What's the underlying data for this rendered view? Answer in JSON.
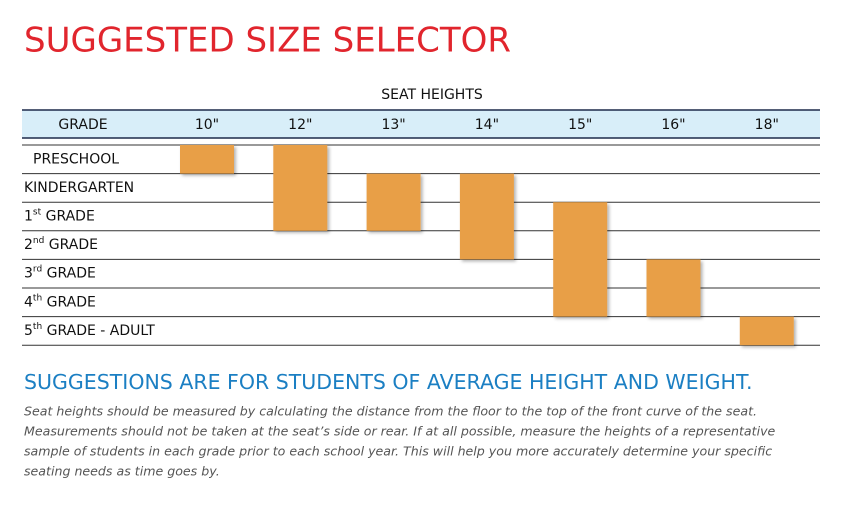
{
  "header": {
    "title": "SUGGESTED SIZE SELECTOR"
  },
  "table": {
    "caption": "SEAT HEIGHTS",
    "grade_header": "GRADE",
    "sizes": [
      {
        "label": "10\"",
        "grades": [
          0
        ]
      },
      {
        "label": "12\"",
        "grades": [
          0,
          1,
          2
        ]
      },
      {
        "label": "13\"",
        "grades": [
          1,
          2
        ]
      },
      {
        "label": "14\"",
        "grades": [
          1,
          2,
          3
        ]
      },
      {
        "label": "15\"",
        "grades": [
          2,
          3,
          4,
          5
        ]
      },
      {
        "label": "16\"",
        "grades": [
          4,
          5
        ]
      },
      {
        "label": "18\"",
        "grades": [
          6
        ]
      }
    ],
    "grades": [
      {
        "label": "PRESCHOOL"
      },
      {
        "label": "KINDERGARTEN"
      },
      {
        "label": "1",
        "sup": "st",
        "rest": " GRADE"
      },
      {
        "label": "2",
        "sup": "nd",
        "rest": " GRADE"
      },
      {
        "label": "3",
        "sup": "rd",
        "rest": " GRADE"
      },
      {
        "label": "4",
        "sup": "th",
        "rest": " GRADE"
      },
      {
        "label": "5",
        "sup": "th",
        "rest": " GRADE - ADULT"
      }
    ]
  },
  "note": {
    "heading": "SUGGESTIONS ARE FOR STUDENTS OF AVERAGE HEIGHT AND WEIGHT.",
    "lines": [
      "Seat heights should be measured by calculating the distance from the floor to the top of the front curve of the seat.",
      "Measurements should not be taken at the seat’s side or rear.  If at all possible, measure the heights of a representative",
      "sample of students in each grade prior to each school year.  This will help you more accurately determine your specific",
      "seating needs as time goes by."
    ]
  }
}
